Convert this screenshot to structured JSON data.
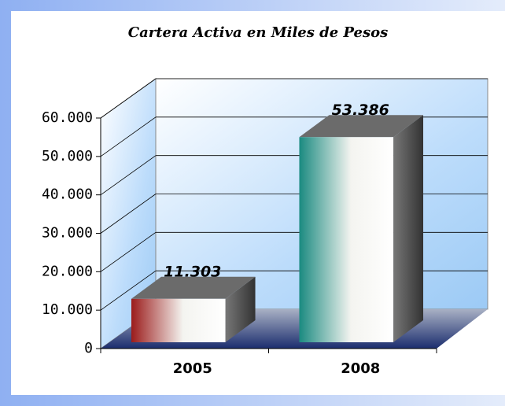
{
  "chart_data": {
    "type": "bar3d",
    "title": "Cartera Activa en Miles de Pesos",
    "categories": [
      "2005",
      "2008"
    ],
    "values": [
      11303,
      53386
    ],
    "value_labels": [
      "11.303",
      "53.386"
    ],
    "colors": [
      "#9b1b1b",
      "#1a8a80"
    ],
    "ylim": [
      0,
      60000
    ],
    "yticks": [
      0,
      {
        "value": 10000,
        "label": "10.000"
      },
      {
        "value": 20000,
        "label": "20.000"
      },
      {
        "value": 30000,
        "label": "30.000"
      },
      {
        "value": 40000,
        "label": "40.000"
      },
      {
        "value": 50000,
        "label": "50.000"
      },
      {
        "value": 60000,
        "label": "60.000"
      }
    ],
    "grid": true
  }
}
